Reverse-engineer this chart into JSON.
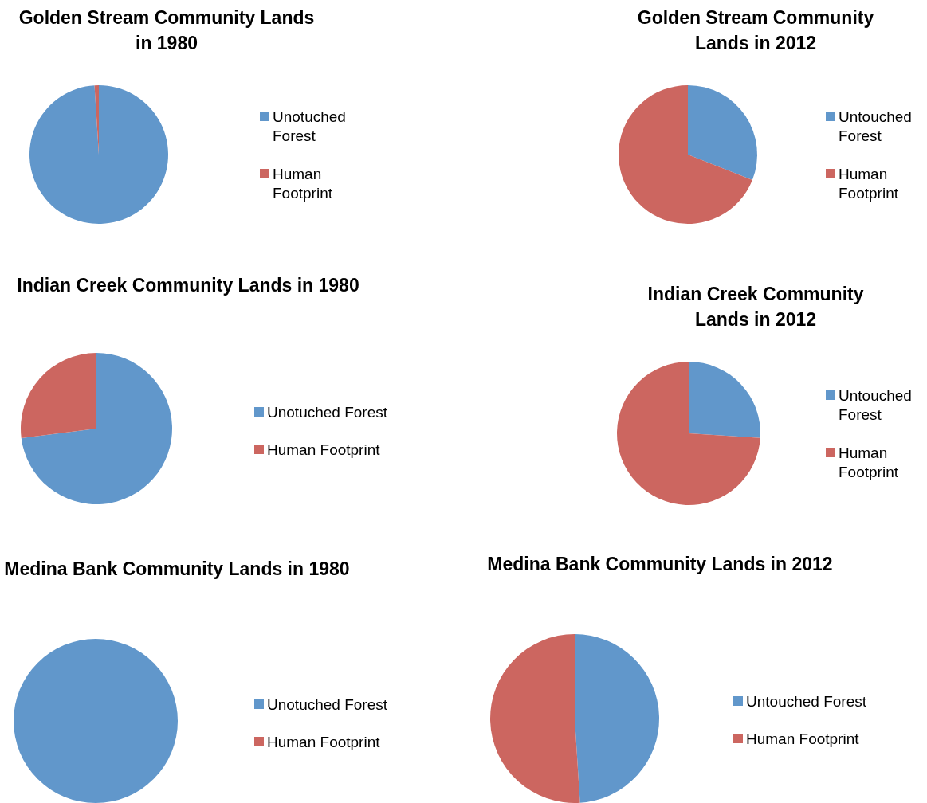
{
  "chart_data": [
    {
      "type": "pie",
      "title": "Golden Stream Community Lands in 1980",
      "categories": [
        "Unotuched Forest",
        "Human Footprint"
      ],
      "values": [
        99,
        1
      ],
      "colors": [
        "#6197cb",
        "#cc6660"
      ],
      "legend": "right"
    },
    {
      "type": "pie",
      "title": "Golden Stream Community Lands in 2012",
      "categories": [
        "Untouched Forest",
        "Human Footprint"
      ],
      "values": [
        31,
        69
      ],
      "colors": [
        "#6197cb",
        "#cc6660"
      ],
      "legend": "right"
    },
    {
      "type": "pie",
      "title": "Indian Creek Community Lands in 1980",
      "categories": [
        "Unotuched Forest",
        "Human Footprint"
      ],
      "values": [
        73,
        27
      ],
      "colors": [
        "#6197cb",
        "#cc6660"
      ],
      "legend": "right"
    },
    {
      "type": "pie",
      "title": "Indian Creek Community Lands in 2012",
      "categories": [
        "Untouched Forest",
        "Human Footprint"
      ],
      "values": [
        26,
        74
      ],
      "colors": [
        "#6197cb",
        "#cc6660"
      ],
      "legend": "right"
    },
    {
      "type": "pie",
      "title": "Medina Bank Community Lands in 1980",
      "categories": [
        "Unotuched Forest",
        "Human Footprint"
      ],
      "values": [
        100,
        0
      ],
      "colors": [
        "#6197cb",
        "#cc6660"
      ],
      "legend": "right"
    },
    {
      "type": "pie",
      "title": "Medina Bank Community Lands in 2012",
      "categories": [
        "Untouched Forest",
        "Human Footprint"
      ],
      "values": [
        49,
        51
      ],
      "colors": [
        "#6197cb",
        "#cc6660"
      ],
      "legend": "right"
    }
  ]
}
